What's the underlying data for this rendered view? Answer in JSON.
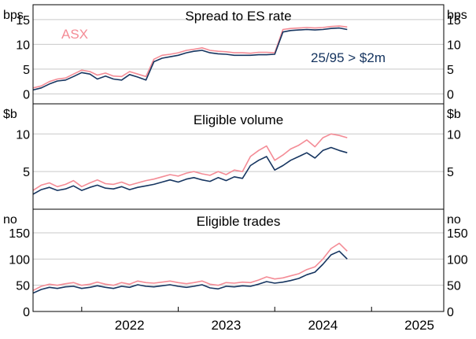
{
  "chart_data": [
    {
      "type": "line",
      "title": "Spread to ES rate",
      "unit_left": "bps",
      "unit_right": "bps",
      "ylim": [
        -2,
        18
      ],
      "yticks": [
        0,
        5,
        10,
        15
      ],
      "series": [
        {
          "name": "ASX",
          "color": "#f48c96",
          "x": [
            "2021-07-01",
            "2021-08-01",
            "2021-09-01",
            "2021-10-01",
            "2021-11-01",
            "2021-12-01",
            "2022-01-01",
            "2022-02-01",
            "2022-03-01",
            "2022-04-01",
            "2022-05-01",
            "2022-06-01",
            "2022-07-01",
            "2022-08-01",
            "2022-09-01",
            "2022-10-01",
            "2022-11-01",
            "2022-12-01",
            "2023-01-01",
            "2023-02-01",
            "2023-03-01",
            "2023-04-01",
            "2023-05-01",
            "2023-06-01",
            "2023-07-01",
            "2023-08-01",
            "2023-09-01",
            "2023-10-01",
            "2023-11-01",
            "2023-12-01",
            "2024-01-01",
            "2024-02-01",
            "2024-03-01",
            "2024-04-01",
            "2024-05-01",
            "2024-06-01",
            "2024-07-01",
            "2024-08-01",
            "2024-09-01",
            "2024-10-01"
          ],
          "values": [
            1.2,
            1.6,
            2.5,
            3.0,
            3.2,
            4.0,
            4.8,
            4.5,
            3.8,
            4.2,
            3.6,
            3.5,
            4.5,
            4.0,
            3.5,
            7.0,
            7.8,
            8.0,
            8.3,
            8.8,
            9.0,
            9.3,
            8.8,
            8.6,
            8.5,
            8.3,
            8.3,
            8.2,
            8.4,
            8.4,
            8.3,
            13.0,
            13.2,
            13.3,
            13.4,
            13.3,
            13.4,
            13.6,
            13.7,
            13.5
          ]
        },
        {
          "name": "25/95 > $2m",
          "color": "#163560",
          "x": [
            "2021-07-01",
            "2021-08-01",
            "2021-09-01",
            "2021-10-01",
            "2021-11-01",
            "2021-12-01",
            "2022-01-01",
            "2022-02-01",
            "2022-03-01",
            "2022-04-01",
            "2022-05-01",
            "2022-06-01",
            "2022-07-01",
            "2022-08-01",
            "2022-09-01",
            "2022-10-01",
            "2022-11-01",
            "2022-12-01",
            "2023-01-01",
            "2023-02-01",
            "2023-03-01",
            "2023-04-01",
            "2023-05-01",
            "2023-06-01",
            "2023-07-01",
            "2023-08-01",
            "2023-09-01",
            "2023-10-01",
            "2023-11-01",
            "2023-12-01",
            "2024-01-01",
            "2024-02-01",
            "2024-03-01",
            "2024-04-01",
            "2024-05-01",
            "2024-06-01",
            "2024-07-01",
            "2024-08-01",
            "2024-09-01",
            "2024-10-01"
          ],
          "values": [
            0.8,
            1.2,
            2.0,
            2.6,
            2.8,
            3.5,
            4.3,
            4.0,
            3.0,
            3.6,
            3.0,
            2.8,
            3.9,
            3.4,
            2.8,
            6.5,
            7.2,
            7.5,
            7.8,
            8.3,
            8.6,
            8.8,
            8.3,
            8.1,
            8.0,
            7.8,
            7.8,
            7.8,
            7.9,
            7.9,
            8.0,
            12.5,
            12.8,
            12.9,
            13.0,
            12.9,
            13.0,
            13.2,
            13.3,
            13.0
          ]
        }
      ],
      "annotations": [
        "ASX",
        "25/95 > $2m"
      ]
    },
    {
      "type": "line",
      "title": "Eligible volume",
      "unit_left": "$b",
      "unit_right": "$b",
      "ylim": [
        0,
        14
      ],
      "yticks": [
        5,
        10
      ],
      "series": [
        {
          "name": "ASX",
          "color": "#f48c96",
          "x": [
            "2021-07-01",
            "2021-08-01",
            "2021-09-01",
            "2021-10-01",
            "2021-11-01",
            "2021-12-01",
            "2022-01-01",
            "2022-02-01",
            "2022-03-01",
            "2022-04-01",
            "2022-05-01",
            "2022-06-01",
            "2022-07-01",
            "2022-08-01",
            "2022-09-01",
            "2022-10-01",
            "2022-11-01",
            "2022-12-01",
            "2023-01-01",
            "2023-02-01",
            "2023-03-01",
            "2023-04-01",
            "2023-05-01",
            "2023-06-01",
            "2023-07-01",
            "2023-08-01",
            "2023-09-01",
            "2023-10-01",
            "2023-11-01",
            "2023-12-01",
            "2024-01-01",
            "2024-02-01",
            "2024-03-01",
            "2024-04-01",
            "2024-05-01",
            "2024-06-01",
            "2024-07-01",
            "2024-08-01",
            "2024-09-01",
            "2024-10-01"
          ],
          "values": [
            2.5,
            3.2,
            3.5,
            3.0,
            3.3,
            3.8,
            3.0,
            3.5,
            3.9,
            3.4,
            3.3,
            3.6,
            3.2,
            3.5,
            3.8,
            4.0,
            4.3,
            4.6,
            4.4,
            4.8,
            5.0,
            4.7,
            4.5,
            5.0,
            4.6,
            5.2,
            5.0,
            7.0,
            7.8,
            8.4,
            6.5,
            7.2,
            8.0,
            8.5,
            9.2,
            8.3,
            9.5,
            10.0,
            9.8,
            9.5
          ]
        },
        {
          "name": "25/95 > $2m",
          "color": "#163560",
          "x": [
            "2021-07-01",
            "2021-08-01",
            "2021-09-01",
            "2021-10-01",
            "2021-11-01",
            "2021-12-01",
            "2022-01-01",
            "2022-02-01",
            "2022-03-01",
            "2022-04-01",
            "2022-05-01",
            "2022-06-01",
            "2022-07-01",
            "2022-08-01",
            "2022-09-01",
            "2022-10-01",
            "2022-11-01",
            "2022-12-01",
            "2023-01-01",
            "2023-02-01",
            "2023-03-01",
            "2023-04-01",
            "2023-05-01",
            "2023-06-01",
            "2023-07-01",
            "2023-08-01",
            "2023-09-01",
            "2023-10-01",
            "2023-11-01",
            "2023-12-01",
            "2024-01-01",
            "2024-02-01",
            "2024-03-01",
            "2024-04-01",
            "2024-05-01",
            "2024-06-01",
            "2024-07-01",
            "2024-08-01",
            "2024-09-01",
            "2024-10-01"
          ],
          "values": [
            2.0,
            2.6,
            2.9,
            2.5,
            2.7,
            3.1,
            2.5,
            2.9,
            3.2,
            2.8,
            2.7,
            3.0,
            2.6,
            2.9,
            3.1,
            3.3,
            3.6,
            3.9,
            3.6,
            4.0,
            4.2,
            3.9,
            3.7,
            4.2,
            3.8,
            4.3,
            4.1,
            5.8,
            6.5,
            7.0,
            5.2,
            5.8,
            6.5,
            7.0,
            7.5,
            6.8,
            7.8,
            8.2,
            7.8,
            7.5
          ]
        }
      ]
    },
    {
      "type": "line",
      "title": "Eligible trades",
      "unit_left": "no",
      "unit_right": "no",
      "ylim": [
        0,
        195
      ],
      "yticks": [
        0,
        50,
        100,
        150
      ],
      "series": [
        {
          "name": "ASX",
          "color": "#f48c96",
          "x": [
            "2021-07-01",
            "2021-08-01",
            "2021-09-01",
            "2021-10-01",
            "2021-11-01",
            "2021-12-01",
            "2022-01-01",
            "2022-02-01",
            "2022-03-01",
            "2022-04-01",
            "2022-05-01",
            "2022-06-01",
            "2022-07-01",
            "2022-08-01",
            "2022-09-01",
            "2022-10-01",
            "2022-11-01",
            "2022-12-01",
            "2023-01-01",
            "2023-02-01",
            "2023-03-01",
            "2023-04-01",
            "2023-05-01",
            "2023-06-01",
            "2023-07-01",
            "2023-08-01",
            "2023-09-01",
            "2023-10-01",
            "2023-11-01",
            "2023-12-01",
            "2024-01-01",
            "2024-02-01",
            "2024-03-01",
            "2024-04-01",
            "2024-05-01",
            "2024-06-01",
            "2024-07-01",
            "2024-08-01",
            "2024-09-01",
            "2024-10-01"
          ],
          "values": [
            40,
            48,
            52,
            50,
            53,
            55,
            50,
            52,
            56,
            52,
            50,
            55,
            52,
            58,
            55,
            54,
            56,
            58,
            55,
            53,
            55,
            58,
            52,
            50,
            55,
            54,
            56,
            55,
            60,
            66,
            62,
            64,
            68,
            72,
            80,
            85,
            100,
            120,
            130,
            115
          ]
        },
        {
          "name": "25/95 > $2m",
          "color": "#163560",
          "x": [
            "2021-07-01",
            "2021-08-01",
            "2021-09-01",
            "2021-10-01",
            "2021-11-01",
            "2021-12-01",
            "2022-01-01",
            "2022-02-01",
            "2022-03-01",
            "2022-04-01",
            "2022-05-01",
            "2022-06-01",
            "2022-07-01",
            "2022-08-01",
            "2022-09-01",
            "2022-10-01",
            "2022-11-01",
            "2022-12-01",
            "2023-01-01",
            "2023-02-01",
            "2023-03-01",
            "2023-04-01",
            "2023-05-01",
            "2023-06-01",
            "2023-07-01",
            "2023-08-01",
            "2023-09-01",
            "2023-10-01",
            "2023-11-01",
            "2023-12-01",
            "2024-01-01",
            "2024-02-01",
            "2024-03-01",
            "2024-04-01",
            "2024-05-01",
            "2024-06-01",
            "2024-07-01",
            "2024-08-01",
            "2024-09-01",
            "2024-10-01"
          ],
          "values": [
            35,
            42,
            46,
            44,
            47,
            48,
            44,
            46,
            49,
            46,
            44,
            48,
            46,
            51,
            48,
            47,
            49,
            51,
            48,
            46,
            48,
            51,
            45,
            43,
            48,
            47,
            49,
            48,
            52,
            57,
            54,
            56,
            59,
            63,
            70,
            75,
            90,
            108,
            115,
            100
          ]
        }
      ]
    }
  ],
  "x_axis": {
    "ticks": [
      "2022",
      "2023",
      "2024",
      "2025"
    ],
    "range": [
      "2021-07-01",
      "2025-10-01"
    ]
  }
}
